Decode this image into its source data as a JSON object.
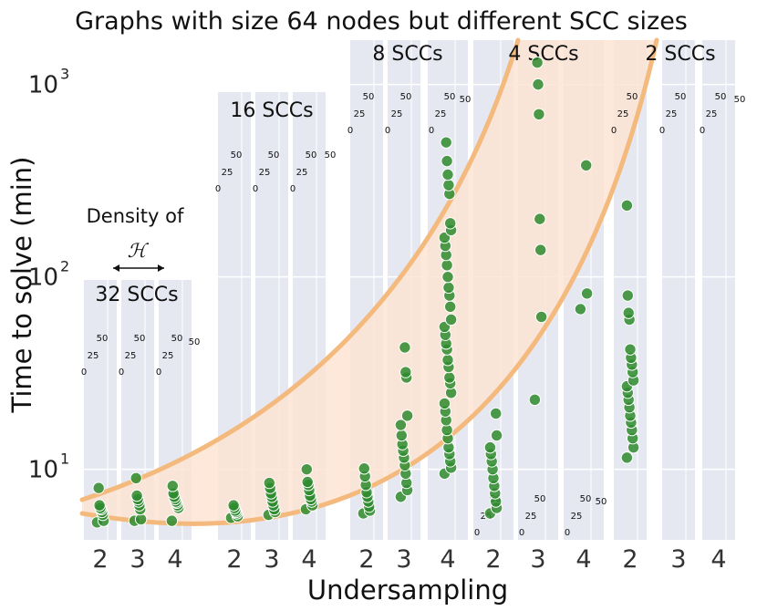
{
  "chart_data": {
    "type": "scatter",
    "title": "Graphs with size 64 nodes but different SCC sizes",
    "xlabel": "Undersampling",
    "ylabel": "Time to solve (min)",
    "yscale": "log",
    "ylim": [
      4.3,
      1700
    ],
    "yticks": [
      {
        "base": "10",
        "exp": "1",
        "value": 10
      },
      {
        "base": "10",
        "exp": "2",
        "value": 100
      },
      {
        "base": "10",
        "exp": "3",
        "value": 1000
      }
    ],
    "density_annotation": {
      "text": "Density of",
      "symbol": "ℋ"
    },
    "density_labels": [
      "0",
      "25",
      "50"
    ],
    "density_label_extra": "50",
    "undersampling_values": [
      "2",
      "3",
      "4"
    ],
    "colors": {
      "point": "#2e8b2e",
      "point_stroke": "#ffffff",
      "band_fill": "#fde3d2",
      "band_edge": "#f4b97c",
      "bar": "#e6e8f1",
      "grid": "#ffffff"
    },
    "groups": [
      {
        "name": "32 SCCs",
        "series": [
          {
            "undersampling": "2",
            "values": [
              5.3,
              5.4,
              5.8,
              6.0,
              6.2,
              6.3,
              6.5,
              8.0
            ]
          },
          {
            "undersampling": "3",
            "values": [
              5.4,
              5.5,
              6.2,
              6.5,
              6.8,
              7.0,
              7.3,
              9.0
            ]
          },
          {
            "undersampling": "4",
            "values": [
              5.4,
              6.3,
              6.5,
              6.7,
              6.8,
              7.0,
              7.2,
              7.5,
              8.2
            ]
          }
        ]
      },
      {
        "name": "16 SCCs",
        "series": [
          {
            "undersampling": "2",
            "values": [
              5.6,
              5.7,
              5.9,
              6.0,
              6.1,
              6.3,
              6.5
            ]
          },
          {
            "undersampling": "3",
            "values": [
              5.8,
              6.0,
              6.2,
              6.5,
              6.8,
              7.2,
              7.5,
              8.0,
              8.5
            ]
          },
          {
            "undersampling": "4",
            "values": [
              6.2,
              6.5,
              6.8,
              7.0,
              7.3,
              7.8,
              8.3,
              8.6,
              10.0
            ]
          }
        ]
      },
      {
        "name": "8 SCCs",
        "series": [
          {
            "undersampling": "2",
            "values": [
              5.9,
              6.1,
              6.4,
              6.8,
              7.2,
              7.6,
              8.3,
              9.2,
              10.1
            ]
          },
          {
            "undersampling": "3",
            "values": [
              7.2,
              7.8,
              8.5,
              9.5,
              10.5,
              11.5,
              12.5,
              13.5,
              15.0,
              17.0,
              19.0,
              30.0,
              32.0,
              43.0
            ]
          },
          {
            "undersampling": "4",
            "values": [
              9.5,
              10.2,
              11.0,
              12.0,
              13.0,
              14.5,
              16.0,
              18.0,
              20.0,
              22.0,
              25.0,
              28.0,
              30.0,
              34.0,
              37.0,
              42.0,
              45.0,
              50.0,
              55.0,
              60.0,
              70.0,
              80.0,
              88.0,
              100.0,
              115.0,
              130.0,
              145.0,
              160.0,
              175.0,
              190.0,
              270.0,
              300.0,
              340.0,
              400.0,
              500.0
            ]
          }
        ]
      },
      {
        "name": "4 SCCs",
        "series": [
          {
            "undersampling": "2",
            "values": [
              5.9,
              6.3,
              6.8,
              7.5,
              8.2,
              9.0,
              10.0,
              11.0,
              12.0,
              13.0,
              15.0,
              19.5
            ]
          },
          {
            "undersampling": "3",
            "values": [
              23.0,
              62.0,
              138.0,
              200.0,
              700.0,
              1000.0,
              1300.0
            ]
          },
          {
            "undersampling": "4",
            "values": [
              68.0,
              82.0,
              380.0
            ]
          }
        ]
      },
      {
        "name": "2 SCCs",
        "series": [
          {
            "undersampling": "2",
            "values": [
              11.5,
              13.0,
              14.5,
              16.0,
              17.5,
              19.0,
              21.0,
              23.0,
              25.0,
              27.0,
              29.0,
              32.0,
              35.0,
              38.0,
              42.0,
              60.0,
              65.0,
              80.0,
              235.0
            ]
          },
          {
            "undersampling": "3",
            "values": []
          },
          {
            "undersampling": "4",
            "values": []
          }
        ]
      }
    ]
  }
}
